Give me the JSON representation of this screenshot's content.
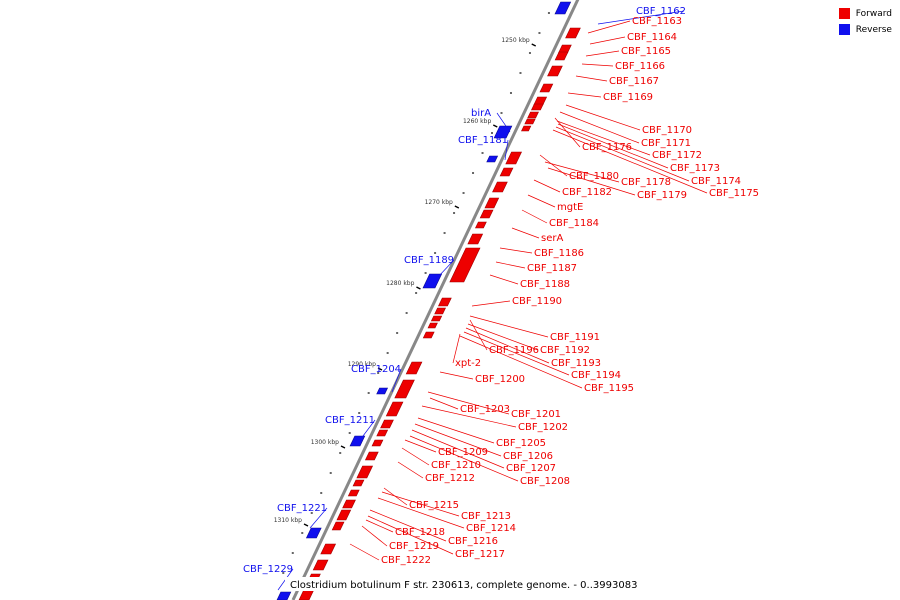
{
  "caption": "Clostridium botulinum F str. 230613, complete genome. - 0..3993083",
  "legend": [
    {
      "label": "Forward",
      "color": "#ee0000"
    },
    {
      "label": "Reverse",
      "color": "#1010ee"
    }
  ],
  "ticks": [
    "1250 kbp",
    "1260 kbp",
    "1270 kbp",
    "1280 kbp",
    "1290 kbp",
    "1300 kbp",
    "1310 kbp"
  ],
  "forward_labels": [
    "CBF_1163",
    "CBF_1164",
    "CBF_1165",
    "CBF_1166",
    "CBF_1167",
    "CBF_1169",
    "CBF_1170",
    "CBF_1171",
    "CBF_1176",
    "CBF_1172",
    "CBF_1173",
    "CBF_1174",
    "CBF_1175",
    "CBF_1180",
    "CBF_1178",
    "CBF_1179",
    "CBF_1182",
    "mgtE",
    "CBF_1184",
    "serA",
    "CBF_1186",
    "CBF_1187",
    "CBF_1188",
    "CBF_1190",
    "CBF_1191",
    "CBF_1196",
    "CBF_1192",
    "CBF_1193",
    "xpt-2",
    "CBF_1194",
    "CBF_1195",
    "CBF_1200",
    "CBF_1203",
    "CBF_1201",
    "CBF_1202",
    "CBF_1205",
    "CBF_1209",
    "CBF_1206",
    "CBF_1210",
    "CBF_1207",
    "CBF_1212",
    "CBF_1208",
    "CBF_1215",
    "CBF_1213",
    "CBF_1214",
    "CBF_1218",
    "CBF_1216",
    "CBF_1219",
    "CBF_1217",
    "CBF_1222"
  ],
  "reverse_labels": [
    "CBF_1162",
    "birA",
    "CBF_1181",
    "CBF_1189",
    "CBF_1204",
    "CBF_1211",
    "CBF_1221",
    "CBF_1229"
  ]
}
